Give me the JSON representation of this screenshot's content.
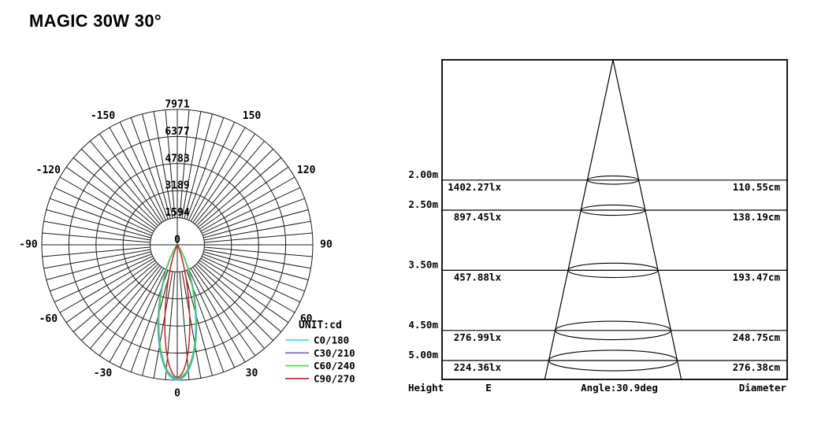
{
  "title": "MAGIC 30W 30°",
  "chart_data": [
    {
      "type": "polar-intensity",
      "unit_label": "UNIT:cd",
      "ring_values": [
        0,
        1594,
        3189,
        4783,
        6377,
        7971
      ],
      "max_cd": 7971,
      "angle_tick_deg": 5,
      "angle_labels": [
        0,
        30,
        60,
        90,
        120,
        150,
        -30,
        -60,
        -90,
        -120,
        -150
      ],
      "grid_color": "#1b1b1b",
      "legend": [
        {
          "label": "C0/180",
          "color": "#4ADAE6"
        },
        {
          "label": "C30/210",
          "color": "#6A66C0"
        },
        {
          "label": "C60/240",
          "color": "#53D653"
        },
        {
          "label": "C90/270",
          "color": "#C03030"
        }
      ],
      "curves": [
        {
          "plane": "C0/180",
          "color": "#4ADAE6",
          "peak_cd": 7971,
          "fwhm_deg": 32.0
        },
        {
          "plane": "C30/210",
          "color": "#6A66C0",
          "peak_cd": 7895,
          "fwhm_deg": 31.5
        },
        {
          "plane": "C60/240",
          "color": "#53D653",
          "peak_cd": 7845,
          "fwhm_deg": 31.0
        },
        {
          "plane": "C90/270",
          "color": "#C03030",
          "peak_cd": 7795,
          "fwhm_deg": 21.0
        }
      ]
    },
    {
      "type": "cone-diagram",
      "beam_angle_label": "Angle:30.9deg",
      "columns": {
        "height": "Height",
        "e": "E",
        "diameter": "Diameter"
      },
      "rows": [
        {
          "height": "2.00m",
          "h_m": 2.0,
          "e": "1402.27lx",
          "diameter": "110.55cm",
          "d_cm": 110.55
        },
        {
          "height": "2.50m",
          "h_m": 2.5,
          "e": "897.45lx",
          "diameter": "138.19cm",
          "d_cm": 138.19
        },
        {
          "height": "3.50m",
          "h_m": 3.5,
          "e": "457.88lx",
          "diameter": "193.47cm",
          "d_cm": 193.47
        },
        {
          "height": "4.50m",
          "h_m": 4.5,
          "e": "276.99lx",
          "diameter": "248.75cm",
          "d_cm": 248.75
        },
        {
          "height": "5.00m",
          "h_m": 5.0,
          "e": "224.36lx",
          "diameter": "276.38cm",
          "d_cm": 276.38
        }
      ]
    }
  ]
}
